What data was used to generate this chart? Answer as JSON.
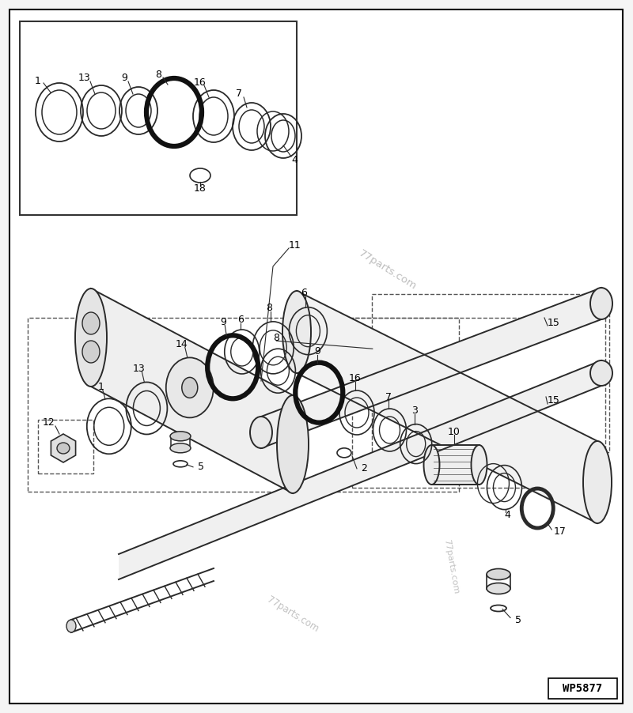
{
  "bg": "#f5f5f5",
  "lc": "#2a2a2a",
  "lw_main": 1.4,
  "lw_thin": 0.9,
  "lw_thick": 4.5,
  "label_fs": 9,
  "wp_label": "WP5877",
  "watermark1": "77parts.com",
  "watermark2": "77parts.com",
  "watermark3": "77parts.com"
}
